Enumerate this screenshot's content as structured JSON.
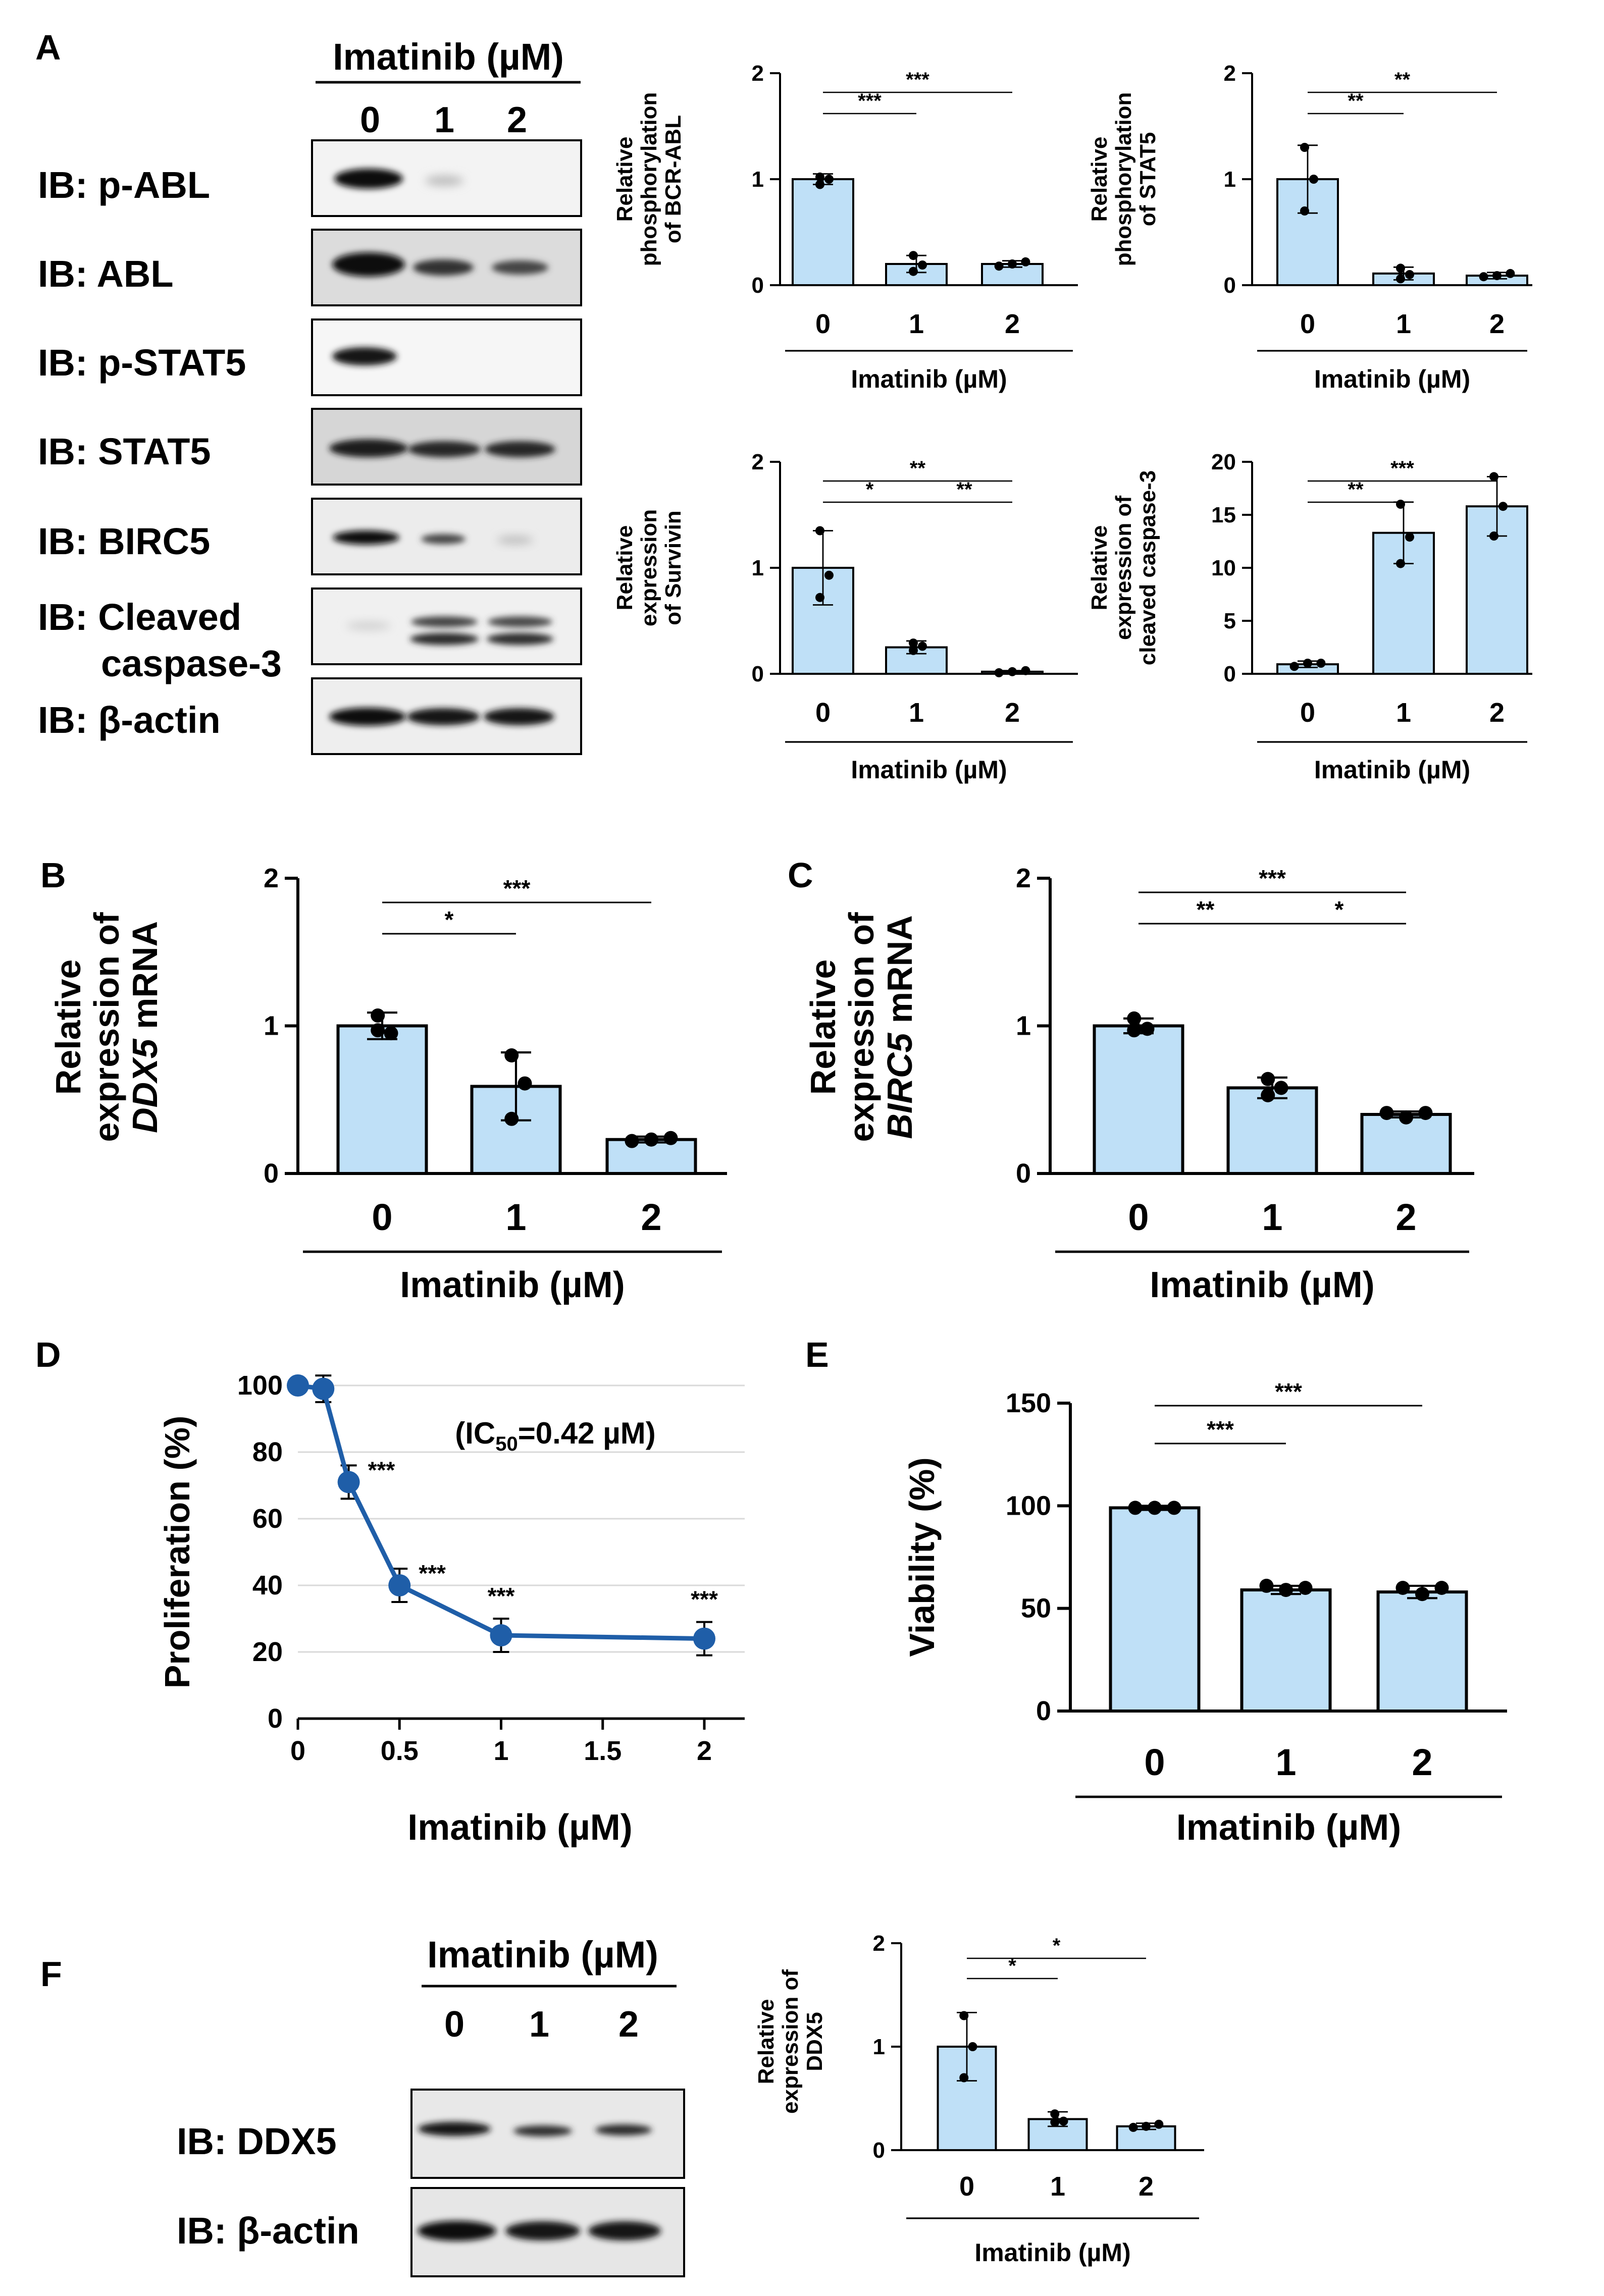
{
  "panel_letters": [
    "A",
    "B",
    "C",
    "D",
    "E",
    "F"
  ],
  "western_blot_A": {
    "title": "Imatinib (µM)",
    "lanes": [
      "0",
      "1",
      "2"
    ],
    "rows": [
      "IB: p-ABL",
      "IB: ABL",
      "IB: p-STAT5",
      "IB: STAT5",
      "IB: BIRC5",
      "IB: Cleaved caspase-3",
      "IB: β-actin"
    ]
  },
  "western_blot_F": {
    "title": "Imatinib (µM)",
    "lanes": [
      "0",
      "1",
      "2"
    ],
    "rows": [
      "IB: DDX5",
      "IB: β-actin"
    ]
  },
  "colors": {
    "bar_fill": "#bfe0f7",
    "bar_stroke": "#000000",
    "line": "#1f5ea8",
    "grid": "#d9d9d9"
  },
  "chart_data": [
    {
      "id": "A1",
      "type": "bar",
      "panel": "A",
      "ylabel": [
        "Relative",
        "phosphorylation",
        "of BCR-ABL"
      ],
      "xlabel": "Imatinib (µM)",
      "categories": [
        "0",
        "1",
        "2"
      ],
      "values": [
        1.0,
        0.2,
        0.2
      ],
      "errors": [
        0.05,
        0.08,
        0.03
      ],
      "points": [
        [
          0.95,
          1.0,
          1.02
        ],
        [
          0.13,
          0.19,
          0.28
        ],
        [
          0.18,
          0.2,
          0.22
        ]
      ],
      "ylim": [
        0,
        2
      ],
      "yticks": [
        0,
        1,
        2
      ],
      "significance": [
        {
          "from": 0,
          "to": 1,
          "label": "***"
        },
        {
          "from": 0,
          "to": 2,
          "label": "***"
        }
      ]
    },
    {
      "id": "A2",
      "type": "bar",
      "panel": "A",
      "ylabel": [
        "Relative",
        "phosphorylation",
        "of STAT5"
      ],
      "xlabel": "Imatinib (µM)",
      "categories": [
        "0",
        "1",
        "2"
      ],
      "values": [
        1.0,
        0.11,
        0.09
      ],
      "errors": [
        0.32,
        0.06,
        0.03
      ],
      "points": [
        [
          1.3,
          1.0,
          0.7
        ],
        [
          0.06,
          0.1,
          0.16
        ],
        [
          0.08,
          0.09,
          0.11
        ]
      ],
      "ylim": [
        0,
        2
      ],
      "yticks": [
        0,
        1,
        2
      ],
      "significance": [
        {
          "from": 0,
          "to": 1,
          "label": "**"
        },
        {
          "from": 0,
          "to": 2,
          "label": "**"
        }
      ]
    },
    {
      "id": "A3",
      "type": "bar",
      "panel": "A",
      "ylabel": [
        "Relative",
        "expression",
        "of Survivin"
      ],
      "xlabel": "Imatinib (µM)",
      "categories": [
        "0",
        "1",
        "2"
      ],
      "values": [
        1.0,
        0.25,
        0.02
      ],
      "errors": [
        0.35,
        0.06,
        0.01
      ],
      "points": [
        [
          1.35,
          0.93,
          0.72
        ],
        [
          0.22,
          0.26,
          0.29
        ],
        [
          0.01,
          0.02,
          0.03
        ]
      ],
      "ylim": [
        0,
        2
      ],
      "yticks": [
        0,
        1,
        2
      ],
      "significance": [
        {
          "from": 0,
          "to": 1,
          "label": "*"
        },
        {
          "from": 1,
          "to": 2,
          "label": "**"
        },
        {
          "from": 0,
          "to": 2,
          "label": "**"
        }
      ]
    },
    {
      "id": "A4",
      "type": "bar",
      "panel": "A",
      "ylabel": [
        "Relative",
        "expression of",
        "cleaved caspase-3"
      ],
      "xlabel": "Imatinib (µM)",
      "categories": [
        "0",
        "1",
        "2"
      ],
      "values": [
        0.9,
        13.3,
        15.8
      ],
      "errors": [
        0.3,
        2.9,
        2.8
      ],
      "points": [
        [
          0.7,
          1.0,
          1.0
        ],
        [
          16.0,
          12.9,
          10.4
        ],
        [
          18.6,
          15.8,
          13.0
        ]
      ],
      "ylim": [
        0,
        20
      ],
      "yticks": [
        0,
        5,
        10,
        15,
        20
      ],
      "significance": [
        {
          "from": 0,
          "to": 1,
          "label": "**"
        },
        {
          "from": 0,
          "to": 2,
          "label": "***"
        }
      ]
    },
    {
      "id": "B",
      "type": "bar",
      "panel": "B",
      "ylabel_parts": [
        {
          "text": "Relative",
          "italic": false
        },
        {
          "text": "expression of",
          "italic": false
        },
        {
          "text": "DDX5",
          "italic": true,
          "suffix": " mRNA"
        }
      ],
      "xlabel": "Imatinib (µM)",
      "categories": [
        "0",
        "1",
        "2"
      ],
      "values": [
        1.0,
        0.59,
        0.23
      ],
      "errors": [
        0.09,
        0.23,
        0.02
      ],
      "points": [
        [
          1.07,
          0.95,
          0.97
        ],
        [
          0.8,
          0.61,
          0.37
        ],
        [
          0.22,
          0.23,
          0.24
        ]
      ],
      "ylim": [
        0,
        2
      ],
      "yticks": [
        0,
        1,
        2
      ],
      "significance": [
        {
          "from": 0,
          "to": 1,
          "label": "*"
        },
        {
          "from": 0,
          "to": 2,
          "label": "***"
        }
      ]
    },
    {
      "id": "C",
      "type": "bar",
      "panel": "C",
      "ylabel_parts": [
        {
          "text": "Relative",
          "italic": false
        },
        {
          "text": "expression of",
          "italic": false
        },
        {
          "text": "BIRC5",
          "italic": true,
          "suffix": " mRNA"
        }
      ],
      "xlabel": "Imatinib (µM)",
      "categories": [
        "0",
        "1",
        "2"
      ],
      "values": [
        1.0,
        0.58,
        0.4
      ],
      "errors": [
        0.05,
        0.07,
        0.02
      ],
      "points": [
        [
          1.05,
          0.98,
          0.97
        ],
        [
          0.64,
          0.58,
          0.53
        ],
        [
          0.41,
          0.38,
          0.41
        ]
      ],
      "ylim": [
        0,
        2
      ],
      "yticks": [
        0,
        1,
        2
      ],
      "significance": [
        {
          "from": 0,
          "to": 1,
          "label": "**"
        },
        {
          "from": 1,
          "to": 2,
          "label": "*"
        },
        {
          "from": 0,
          "to": 2,
          "label": "***"
        }
      ]
    },
    {
      "id": "D",
      "type": "line",
      "panel": "D",
      "ylabel": "Proliferation (%)",
      "xlabel": "Imatinib (µM)",
      "x": [
        0,
        0.125,
        0.25,
        0.5,
        1,
        2
      ],
      "y": [
        100,
        99,
        71,
        40,
        25,
        24
      ],
      "errors": [
        0,
        4,
        5,
        5,
        5,
        5
      ],
      "point_labels": [
        "",
        "",
        "***",
        "***",
        "***",
        "***"
      ],
      "annotation_prefix": "(IC",
      "annotation_sub": "50",
      "annotation_suffix": "=0.42 µM)",
      "xlim": [
        0,
        2.2
      ],
      "xticks": [
        0,
        0.5,
        1,
        1.5,
        2
      ],
      "xtick_labels": [
        "0",
        "0.5",
        "1",
        "1.5",
        "2"
      ],
      "ylim": [
        0,
        100
      ],
      "yticks": [
        0,
        20,
        40,
        60,
        80,
        100
      ],
      "grid": true
    },
    {
      "id": "E",
      "type": "bar",
      "panel": "E",
      "ylabel": "Viability (%)",
      "xlabel": "Imatinib (µM)",
      "categories": [
        "0",
        "1",
        "2"
      ],
      "values": [
        99,
        59,
        58
      ],
      "errors": [
        1,
        2,
        3
      ],
      "points": [
        [
          99,
          99,
          99
        ],
        [
          61,
          59,
          60
        ],
        [
          60,
          57,
          60
        ]
      ],
      "ylim": [
        0,
        150
      ],
      "yticks": [
        0,
        50,
        100,
        150
      ],
      "significance": [
        {
          "from": 0,
          "to": 1,
          "label": "***"
        },
        {
          "from": 0,
          "to": 2,
          "label": "***"
        }
      ]
    },
    {
      "id": "F",
      "type": "bar",
      "panel": "F",
      "ylabel": [
        "Relative",
        "expression of",
        "DDX5"
      ],
      "xlabel": "Imatinib (µM)",
      "categories": [
        "0",
        "1",
        "2"
      ],
      "values": [
        1.0,
        0.3,
        0.23
      ],
      "errors": [
        0.33,
        0.07,
        0.03
      ],
      "points": [
        [
          1.3,
          1.0,
          0.7
        ],
        [
          0.35,
          0.28,
          0.27
        ],
        [
          0.22,
          0.23,
          0.25
        ]
      ],
      "ylim": [
        0,
        2
      ],
      "yticks": [
        0,
        1,
        2
      ],
      "significance": [
        {
          "from": 0,
          "to": 1,
          "label": "*"
        },
        {
          "from": 0,
          "to": 2,
          "label": "*"
        }
      ]
    }
  ]
}
